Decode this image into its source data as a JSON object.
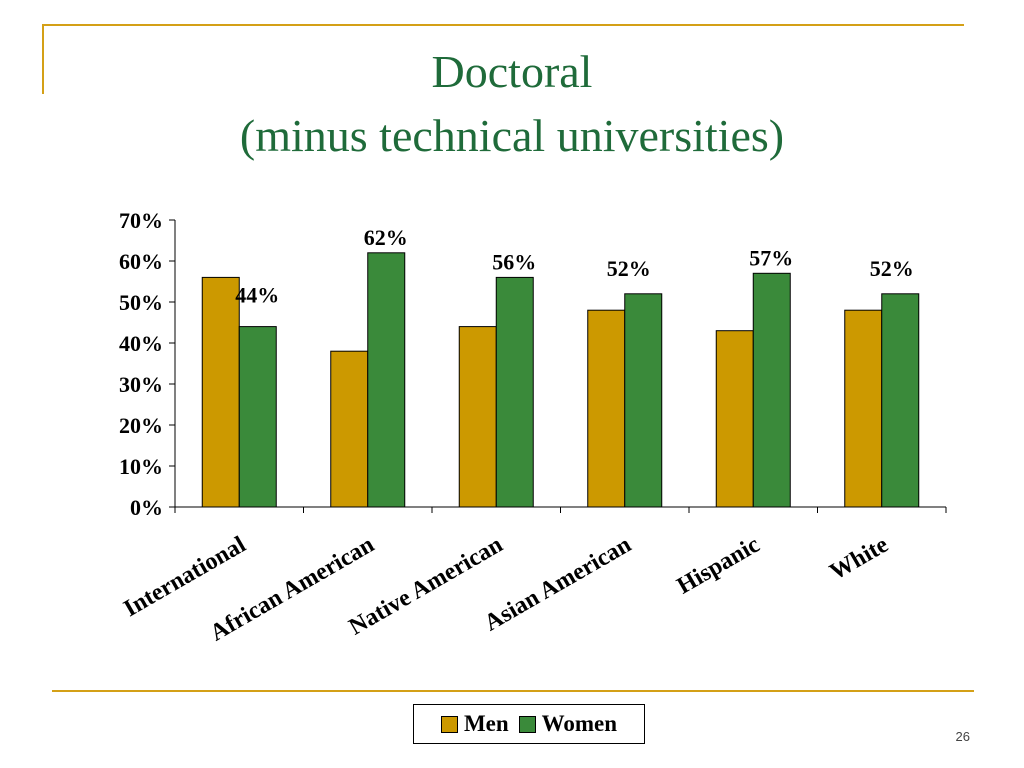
{
  "slide": {
    "title_line1": "Doctoral",
    "title_line2": "(minus technical universities)",
    "page_number": "26"
  },
  "colors": {
    "men": "#cc9900",
    "women": "#3a8a3a",
    "title": "#1f6b3a",
    "accent_line": "#d4a017"
  },
  "chart_data": {
    "type": "bar",
    "categories": [
      "International",
      "African American",
      "Native American",
      "Asian American",
      "Hispanic",
      "White"
    ],
    "series": [
      {
        "name": "Men",
        "values": [
          56,
          38,
          44,
          48,
          43,
          48
        ]
      },
      {
        "name": "Women",
        "values": [
          44,
          62,
          56,
          52,
          57,
          52
        ]
      }
    ],
    "data_labels": [
      "44%",
      "62%",
      "56%",
      "52%",
      "57%",
      "52%"
    ],
    "y_ticks": [
      "0%",
      "10%",
      "20%",
      "30%",
      "40%",
      "50%",
      "60%",
      "70%"
    ],
    "ylim": [
      0,
      70
    ],
    "grid": false,
    "legend_position": "bottom"
  }
}
